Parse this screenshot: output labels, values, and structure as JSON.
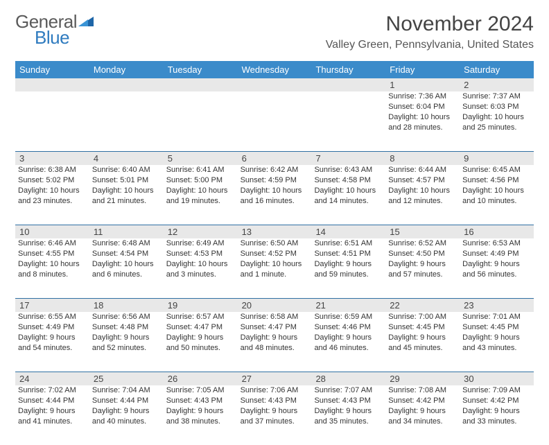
{
  "logo": {
    "general": "General",
    "blue": "Blue"
  },
  "title": "November 2024",
  "location": "Valley Green, Pennsylvania, United States",
  "colors": {
    "header_bg": "#3b8bca",
    "header_text": "#ffffff",
    "daynum_bg": "#e8e8e8",
    "week_border": "#2f6fa3",
    "logo_gray": "#5a5a5a",
    "logo_blue": "#2f7bbf"
  },
  "weekdays": [
    "Sunday",
    "Monday",
    "Tuesday",
    "Wednesday",
    "Thursday",
    "Friday",
    "Saturday"
  ],
  "weeks": [
    [
      null,
      null,
      null,
      null,
      null,
      {
        "n": "1",
        "sr": "Sunrise: 7:36 AM",
        "ss": "Sunset: 6:04 PM",
        "d1": "Daylight: 10 hours",
        "d2": "and 28 minutes."
      },
      {
        "n": "2",
        "sr": "Sunrise: 7:37 AM",
        "ss": "Sunset: 6:03 PM",
        "d1": "Daylight: 10 hours",
        "d2": "and 25 minutes."
      }
    ],
    [
      {
        "n": "3",
        "sr": "Sunrise: 6:38 AM",
        "ss": "Sunset: 5:02 PM",
        "d1": "Daylight: 10 hours",
        "d2": "and 23 minutes."
      },
      {
        "n": "4",
        "sr": "Sunrise: 6:40 AM",
        "ss": "Sunset: 5:01 PM",
        "d1": "Daylight: 10 hours",
        "d2": "and 21 minutes."
      },
      {
        "n": "5",
        "sr": "Sunrise: 6:41 AM",
        "ss": "Sunset: 5:00 PM",
        "d1": "Daylight: 10 hours",
        "d2": "and 19 minutes."
      },
      {
        "n": "6",
        "sr": "Sunrise: 6:42 AM",
        "ss": "Sunset: 4:59 PM",
        "d1": "Daylight: 10 hours",
        "d2": "and 16 minutes."
      },
      {
        "n": "7",
        "sr": "Sunrise: 6:43 AM",
        "ss": "Sunset: 4:58 PM",
        "d1": "Daylight: 10 hours",
        "d2": "and 14 minutes."
      },
      {
        "n": "8",
        "sr": "Sunrise: 6:44 AM",
        "ss": "Sunset: 4:57 PM",
        "d1": "Daylight: 10 hours",
        "d2": "and 12 minutes."
      },
      {
        "n": "9",
        "sr": "Sunrise: 6:45 AM",
        "ss": "Sunset: 4:56 PM",
        "d1": "Daylight: 10 hours",
        "d2": "and 10 minutes."
      }
    ],
    [
      {
        "n": "10",
        "sr": "Sunrise: 6:46 AM",
        "ss": "Sunset: 4:55 PM",
        "d1": "Daylight: 10 hours",
        "d2": "and 8 minutes."
      },
      {
        "n": "11",
        "sr": "Sunrise: 6:48 AM",
        "ss": "Sunset: 4:54 PM",
        "d1": "Daylight: 10 hours",
        "d2": "and 6 minutes."
      },
      {
        "n": "12",
        "sr": "Sunrise: 6:49 AM",
        "ss": "Sunset: 4:53 PM",
        "d1": "Daylight: 10 hours",
        "d2": "and 3 minutes."
      },
      {
        "n": "13",
        "sr": "Sunrise: 6:50 AM",
        "ss": "Sunset: 4:52 PM",
        "d1": "Daylight: 10 hours",
        "d2": "and 1 minute."
      },
      {
        "n": "14",
        "sr": "Sunrise: 6:51 AM",
        "ss": "Sunset: 4:51 PM",
        "d1": "Daylight: 9 hours",
        "d2": "and 59 minutes."
      },
      {
        "n": "15",
        "sr": "Sunrise: 6:52 AM",
        "ss": "Sunset: 4:50 PM",
        "d1": "Daylight: 9 hours",
        "d2": "and 57 minutes."
      },
      {
        "n": "16",
        "sr": "Sunrise: 6:53 AM",
        "ss": "Sunset: 4:49 PM",
        "d1": "Daylight: 9 hours",
        "d2": "and 56 minutes."
      }
    ],
    [
      {
        "n": "17",
        "sr": "Sunrise: 6:55 AM",
        "ss": "Sunset: 4:49 PM",
        "d1": "Daylight: 9 hours",
        "d2": "and 54 minutes."
      },
      {
        "n": "18",
        "sr": "Sunrise: 6:56 AM",
        "ss": "Sunset: 4:48 PM",
        "d1": "Daylight: 9 hours",
        "d2": "and 52 minutes."
      },
      {
        "n": "19",
        "sr": "Sunrise: 6:57 AM",
        "ss": "Sunset: 4:47 PM",
        "d1": "Daylight: 9 hours",
        "d2": "and 50 minutes."
      },
      {
        "n": "20",
        "sr": "Sunrise: 6:58 AM",
        "ss": "Sunset: 4:47 PM",
        "d1": "Daylight: 9 hours",
        "d2": "and 48 minutes."
      },
      {
        "n": "21",
        "sr": "Sunrise: 6:59 AM",
        "ss": "Sunset: 4:46 PM",
        "d1": "Daylight: 9 hours",
        "d2": "and 46 minutes."
      },
      {
        "n": "22",
        "sr": "Sunrise: 7:00 AM",
        "ss": "Sunset: 4:45 PM",
        "d1": "Daylight: 9 hours",
        "d2": "and 45 minutes."
      },
      {
        "n": "23",
        "sr": "Sunrise: 7:01 AM",
        "ss": "Sunset: 4:45 PM",
        "d1": "Daylight: 9 hours",
        "d2": "and 43 minutes."
      }
    ],
    [
      {
        "n": "24",
        "sr": "Sunrise: 7:02 AM",
        "ss": "Sunset: 4:44 PM",
        "d1": "Daylight: 9 hours",
        "d2": "and 41 minutes."
      },
      {
        "n": "25",
        "sr": "Sunrise: 7:04 AM",
        "ss": "Sunset: 4:44 PM",
        "d1": "Daylight: 9 hours",
        "d2": "and 40 minutes."
      },
      {
        "n": "26",
        "sr": "Sunrise: 7:05 AM",
        "ss": "Sunset: 4:43 PM",
        "d1": "Daylight: 9 hours",
        "d2": "and 38 minutes."
      },
      {
        "n": "27",
        "sr": "Sunrise: 7:06 AM",
        "ss": "Sunset: 4:43 PM",
        "d1": "Daylight: 9 hours",
        "d2": "and 37 minutes."
      },
      {
        "n": "28",
        "sr": "Sunrise: 7:07 AM",
        "ss": "Sunset: 4:43 PM",
        "d1": "Daylight: 9 hours",
        "d2": "and 35 minutes."
      },
      {
        "n": "29",
        "sr": "Sunrise: 7:08 AM",
        "ss": "Sunset: 4:42 PM",
        "d1": "Daylight: 9 hours",
        "d2": "and 34 minutes."
      },
      {
        "n": "30",
        "sr": "Sunrise: 7:09 AM",
        "ss": "Sunset: 4:42 PM",
        "d1": "Daylight: 9 hours",
        "d2": "and 33 minutes."
      }
    ]
  ]
}
